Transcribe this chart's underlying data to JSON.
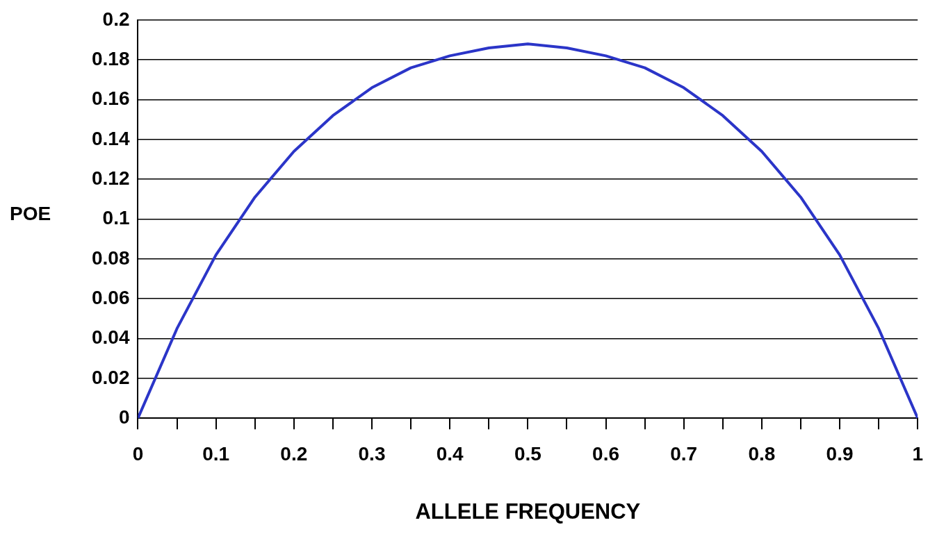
{
  "chart_data": {
    "type": "line",
    "xlabel": "ALLELE FREQUENCY",
    "ylabel": "POE",
    "x": [
      0,
      0.05,
      0.1,
      0.15,
      0.2,
      0.25,
      0.3,
      0.35,
      0.4,
      0.45,
      0.5,
      0.55,
      0.6,
      0.65,
      0.7,
      0.75,
      0.8,
      0.85,
      0.9,
      0.95,
      1
    ],
    "series": [
      {
        "color": "#2b35c8",
        "values": [
          0,
          0.045,
          0.082,
          0.111,
          0.134,
          0.152,
          0.166,
          0.176,
          0.182,
          0.186,
          0.188,
          0.186,
          0.182,
          0.176,
          0.166,
          0.152,
          0.134,
          0.111,
          0.082,
          0.045,
          0
        ]
      }
    ],
    "xlim": [
      0,
      1
    ],
    "ylim": [
      0,
      0.2
    ],
    "xticks": [
      0,
      {
        "value": 0.05,
        "label": null
      },
      0.1,
      {
        "value": 0.15,
        "label": null
      },
      0.2,
      {
        "value": 0.25,
        "label": null
      },
      0.3,
      {
        "value": 0.35,
        "label": null
      },
      0.4,
      {
        "value": 0.45,
        "label": null
      },
      0.5,
      {
        "value": 0.55,
        "label": null
      },
      0.6,
      {
        "value": 0.65,
        "label": null
      },
      0.7,
      {
        "value": 0.75,
        "label": null
      },
      0.8,
      {
        "value": 0.85,
        "label": null
      },
      0.9,
      {
        "value": 0.95,
        "label": null
      },
      1
    ],
    "yticks": [
      0,
      0.02,
      0.04,
      0.06,
      0.08,
      0.1,
      0.12,
      0.14,
      0.16,
      0.18,
      0.2
    ],
    "grid": "y",
    "legend": false,
    "marker": "none",
    "line_style": "solid"
  }
}
